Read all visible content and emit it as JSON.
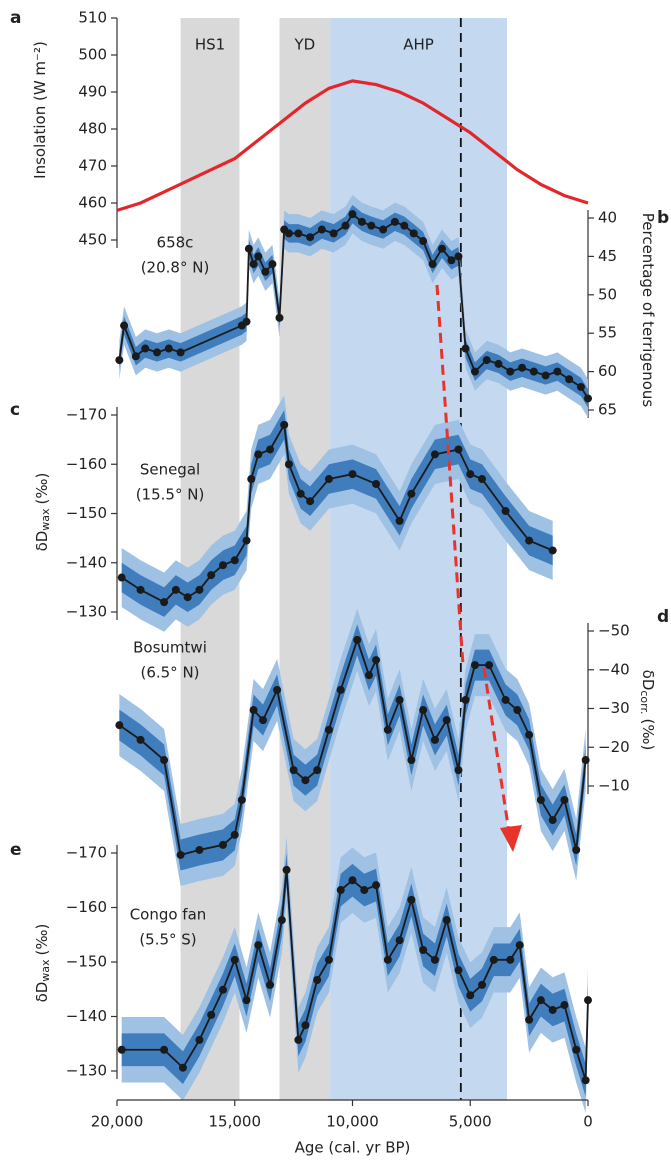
{
  "chart_data": [
    {
      "type": "line",
      "panel_label": "a",
      "axis_side": "left",
      "inverted_y": false,
      "ylabel": "Insolation (W m⁻²)",
      "color": "#e3262b",
      "ylim": [
        450,
        510
      ],
      "yticks": [
        450,
        460,
        470,
        480,
        490,
        500,
        510
      ],
      "xlim": [
        20000,
        0
      ],
      "periods": [
        {
          "label": "HS1",
          "start": 17300,
          "end": 14800,
          "color": "#d9d9d9"
        },
        {
          "label": "YD",
          "start": 13100,
          "end": 10950,
          "color": "#d9d9d9"
        },
        {
          "label": "AHP",
          "start": 10950,
          "end": 3440,
          "color": "#c4d8f0"
        }
      ],
      "reference_age": 5400,
      "x": [
        20000,
        19000,
        18000,
        17000,
        16000,
        15000,
        14000,
        13000,
        12000,
        11000,
        10000,
        9000,
        8000,
        7000,
        6000,
        5000,
        4000,
        3000,
        2000,
        1000,
        0
      ],
      "values": [
        458,
        460,
        463,
        466,
        469,
        472,
        477,
        482,
        487,
        491,
        493,
        492,
        490,
        487,
        483,
        479,
        474,
        469,
        465,
        462,
        460
      ]
    },
    {
      "type": "line",
      "panel_label": "b",
      "axis_side": "right",
      "inverted_y": true,
      "markers": true,
      "site": [
        "658c",
        "(20.8° N)"
      ],
      "ylabel": "Percentage of terrigenous",
      "color": "#1a1a1a",
      "band_inner": 1.2,
      "band_outer": 2.5,
      "ylim": [
        40,
        65
      ],
      "yticks": [
        40,
        45,
        50,
        55,
        60,
        65
      ],
      "xlim": [
        20000,
        0
      ],
      "x": [
        19900,
        19700,
        19200,
        18800,
        18300,
        17800,
        17300,
        14700,
        14500,
        14400,
        14200,
        14000,
        13700,
        13400,
        13100,
        12900,
        12700,
        12300,
        11800,
        11300,
        10800,
        10300,
        10000,
        9600,
        9200,
        8700,
        8200,
        7800,
        7400,
        7000,
        6600,
        6200,
        5800,
        5500,
        5200,
        4800,
        4300,
        3800,
        3300,
        2800,
        2300,
        1800,
        1300,
        800,
        300,
        0
      ],
      "values": [
        58.5,
        54,
        58,
        57,
        57.5,
        57,
        57.5,
        54,
        53.5,
        44,
        46,
        45,
        47,
        46,
        53,
        41.5,
        42,
        42,
        42.5,
        41.5,
        42,
        41,
        39.5,
        40.5,
        41,
        41.5,
        40.5,
        41,
        42,
        43,
        46,
        44,
        45.5,
        45,
        57,
        60,
        58.5,
        59,
        60,
        59.5,
        60,
        60.5,
        60,
        61,
        62,
        63.5
      ]
    },
    {
      "type": "line",
      "panel_label": "c",
      "axis_side": "left",
      "inverted_y": true,
      "markers": true,
      "site": [
        "Senegal",
        "(15.5° N)"
      ],
      "ylabel": "δD",
      "ylabel_sub": "wax",
      "ylabel_unit": "(‰)",
      "color": "#1a1a1a",
      "band_inner": 3,
      "band_outer": 6,
      "ylim": [
        -170,
        -130
      ],
      "yticks": [
        {
          "value": -170,
          "label": "−170"
        },
        {
          "value": -160,
          "label": "−160"
        },
        {
          "value": -150,
          "label": "−150"
        },
        {
          "value": -140,
          "label": "−140"
        },
        {
          "value": -130,
          "label": "−130"
        }
      ],
      "xlim": [
        20000,
        0
      ],
      "x": [
        19800,
        19000,
        18000,
        17500,
        17000,
        16500,
        16000,
        15500,
        15000,
        14500,
        14300,
        14000,
        13500,
        12900,
        12700,
        12200,
        11800,
        11000,
        10000,
        9000,
        8000,
        7500,
        6500,
        5500,
        5000,
        4500,
        3500,
        2500,
        1500
      ],
      "values": [
        -137,
        -134.5,
        -132,
        -134.5,
        -133,
        -134.5,
        -137.5,
        -139.5,
        -140.5,
        -144.5,
        -157,
        -162,
        -163,
        -168,
        -160,
        -154,
        -152.5,
        -157,
        -158,
        -156,
        -148.5,
        -154,
        -162,
        -163,
        -158,
        -157,
        -150.5,
        -144.5,
        -142.5
      ]
    },
    {
      "type": "line",
      "panel_label": "d",
      "axis_side": "right",
      "inverted_y": true,
      "markers": true,
      "site": [
        "Bosumtwi",
        "(6.5° N)"
      ],
      "ylabel": "δD",
      "ylabel_sub": "corr.",
      "ylabel_unit": "(‰)",
      "color": "#1a1a1a",
      "band_inner": 4,
      "band_outer": 8,
      "ylim": [
        -50,
        -10
      ],
      "yticks": [
        {
          "value": -50,
          "label": "−50"
        },
        {
          "value": -40,
          "label": "−40"
        },
        {
          "value": -30,
          "label": "−30"
        },
        {
          "value": -20,
          "label": "−20"
        },
        {
          "value": -10,
          "label": "−10"
        }
      ],
      "xlim": [
        20000,
        0
      ],
      "x": [
        19900,
        19000,
        18000,
        17300,
        16500,
        15500,
        15000,
        14700,
        14200,
        13800,
        13200,
        12500,
        12000,
        11500,
        11000,
        10500,
        9800,
        9300,
        9000,
        8500,
        8000,
        7500,
        7000,
        6500,
        6000,
        5500,
        5200,
        4800,
        4200,
        3500,
        3000,
        2500,
        2000,
        1500,
        1000,
        500,
        100
      ],
      "values": [
        -25.7,
        -21.9,
        -16.7,
        7.8,
        6.5,
        5.2,
        2.6,
        -6.4,
        -29.6,
        -27,
        -34.8,
        -14.1,
        -11.5,
        -14.1,
        -24.5,
        -34.8,
        -47.7,
        -38.6,
        -42.5,
        -24.5,
        -32.2,
        -16.7,
        -29.6,
        -21.9,
        -27,
        -14.1,
        -32.2,
        -41.2,
        -41.2,
        -32.2,
        -29.6,
        -23.2,
        -6.4,
        -1.2,
        -6.4,
        6.5,
        -16.7
      ]
    },
    {
      "type": "line",
      "panel_label": "e",
      "axis_side": "left",
      "inverted_y": true,
      "markers": true,
      "site": [
        "Congo fan",
        "(5.5° S)"
      ],
      "ylabel": "δD",
      "ylabel_sub": "wax",
      "ylabel_unit": "(‰)",
      "color": "#1a1a1a",
      "band_inner": 3,
      "band_outer": 6,
      "ylim": [
        -170,
        -130
      ],
      "yticks": [
        {
          "value": -170,
          "label": "−170"
        },
        {
          "value": -160,
          "label": "−160"
        },
        {
          "value": -150,
          "label": "−150"
        },
        {
          "value": -140,
          "label": "−140"
        },
        {
          "value": -130,
          "label": "−130"
        }
      ],
      "xlim": [
        20000,
        0
      ],
      "xlabel": "Age (cal. yr BP)",
      "xticks": [
        {
          "value": 20000,
          "label": "20,000"
        },
        {
          "value": 15000,
          "label": "15,000"
        },
        {
          "value": 10000,
          "label": "10,000"
        },
        {
          "value": 5000,
          "label": "5,000"
        },
        0
      ],
      "x": [
        19800,
        18000,
        17200,
        16500,
        16000,
        15500,
        15000,
        14500,
        14000,
        13500,
        13000,
        12800,
        12300,
        12000,
        11500,
        11000,
        10500,
        10000,
        9500,
        9000,
        8500,
        8000,
        7500,
        7000,
        6500,
        6000,
        5500,
        5000,
        4500,
        4000,
        3300,
        2900,
        2500,
        2000,
        1500,
        1000,
        500,
        100,
        0
      ],
      "values": [
        -133.9,
        -133.9,
        -130.6,
        -135.7,
        -140.3,
        -144.9,
        -150.4,
        -143,
        -153.1,
        -145.8,
        -157.7,
        -166.9,
        -135.7,
        -138.4,
        -146.7,
        -150.4,
        -163.2,
        -165,
        -163.2,
        -164.1,
        -150.4,
        -154,
        -161.4,
        -152.2,
        -150.4,
        -157.7,
        -148.5,
        -143.9,
        -145.8,
        -150.4,
        -150.4,
        -153.1,
        -139.4,
        -143,
        -141.2,
        -142.1,
        -133.9,
        -128.3,
        -143
      ]
    }
  ]
}
